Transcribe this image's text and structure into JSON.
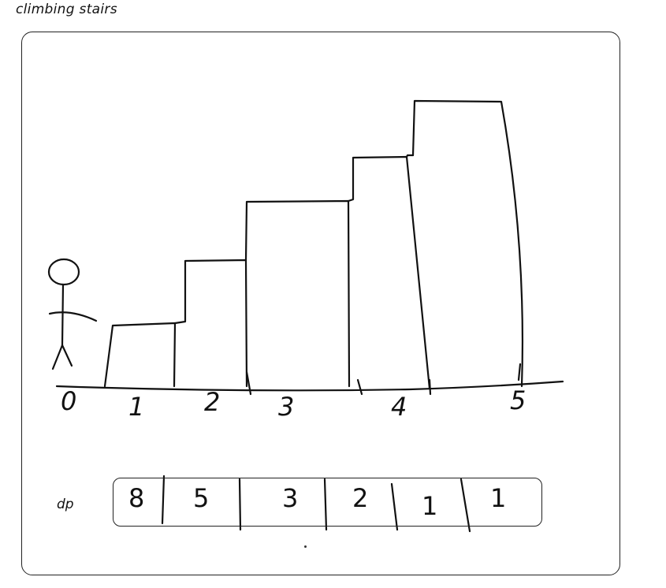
{
  "title": "climbing stairs",
  "axis_labels": [
    "0",
    "1",
    "2",
    "3",
    "4",
    "5"
  ],
  "dp": {
    "label": "dp",
    "values": [
      "8",
      "5",
      "3",
      "2",
      "1",
      "1"
    ]
  },
  "colors": {
    "ink": "#111111",
    "background": "#ffffff"
  }
}
